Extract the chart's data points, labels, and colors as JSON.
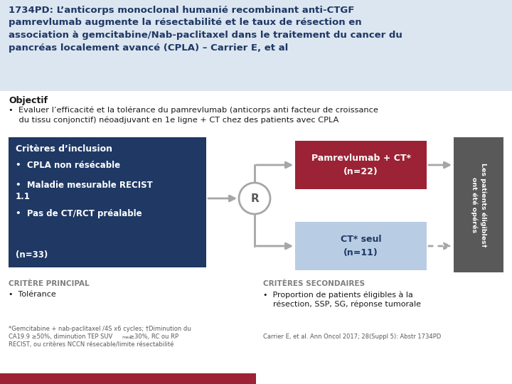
{
  "title_text": "1734PD: L’anticorps monoclonal humanié recombinant anti-CTGF\npamrevlumab augmente la résectabilité et le taux de résection en\nassociation à gemcitabine/Nab-paclitaxel dans le traitement du cancer du\npancréas localement avancé (CPLA) – Carrier E, et al",
  "title_bg": "#dce6f1",
  "title_text_color": "#1f3864",
  "objectif_label": "Objectif",
  "objectif_bullet": "•  Evaluer l’efficacité et la tolérance du pamrevlumab (anticorps anti facteur de croissance\n    du tissu conjonctif) néoadjuvant en 1e ligne + CT chez des patients avec CPLA",
  "inclusion_title": "Critères d’inclusion",
  "inclusion_bullets": [
    "CPLA non résécable",
    "Maladie mesurable RECIST\n1.1",
    "Pas de CT/RCT préalable"
  ],
  "inclusion_n": "(n=33)",
  "inclusion_bg": "#1f3864",
  "pamrev_label": "Pamrevlumab + CT*\n(n=22)",
  "pamrev_bg": "#9b2335",
  "ct_label": "CT* seul\n(n=11)",
  "ct_bg": "#b8cce4",
  "ct_text_color": "#1f3864",
  "rand_label": "R",
  "sidebar_label": "Les patients éligibles†\nont été opérés",
  "sidebar_bg": "#595959",
  "critere_principal_title": "CRITÈRE PRINCIPAL",
  "critere_principal_bullet": "Tolérance",
  "criteres_secondaires_title": "CRITÈRES SECONDAIRES",
  "criteres_secondaires_bullet": "•  Proportion de patients éligibles à la\n    résection, SSP, SG, réponse tumorale",
  "footnote1a": "*Gemcitabine + nab-paclitaxel /4S x6 cycles; †Diminution du",
  "footnote1b": "CA19.9 ≥50%, diminution TEP SUV",
  "footnote1b_sub": "max",
  "footnote1c": "≥30%, RC ou RP",
  "footnote1d": "RECIST, ou critères NCCN résecable/limite résectabilité",
  "footnote2": "Carrier E, et al. Ann Oncol 2017; 28(Suppl 5): Abstr 1734PD",
  "bottom_bar_color": "#9b2335",
  "arrow_color": "#a6a6a6",
  "body_bg": "#ffffff",
  "gray_text": "#7f7f7f",
  "black_text": "#1a1a1a",
  "white": "#ffffff"
}
